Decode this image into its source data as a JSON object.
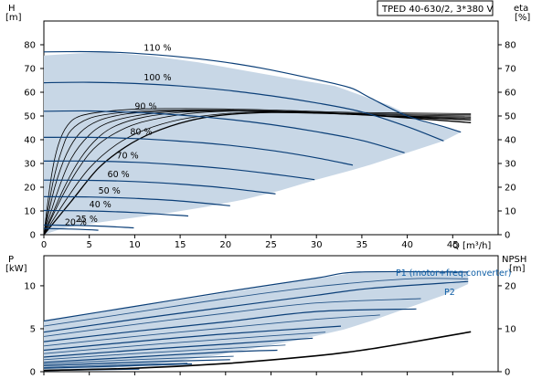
{
  "chart_data": [
    {
      "type": "line",
      "title": "TPED 40-630/2, 3*380 V",
      "xlabel": "Q [m³/h]",
      "ylabel": "H [m]",
      "ylabel_top": "H",
      "ylabel_unit": "[m]",
      "y2label_top": "eta",
      "y2label_unit": "[%]",
      "xlim": [
        0,
        50
      ],
      "ylim": [
        0,
        90
      ],
      "y2lim": [
        0,
        90
      ],
      "x_ticks": [
        0,
        5,
        10,
        15,
        20,
        25,
        30,
        35,
        40,
        45
      ],
      "x_tick_labels": [
        "0",
        "5",
        "10",
        "15",
        "20",
        "25",
        "30",
        "35",
        "40",
        "45"
      ],
      "y_ticks": [
        0,
        10,
        20,
        30,
        40,
        50,
        60,
        70,
        80
      ],
      "y_tick_labels": [
        "0",
        "10",
        "20",
        "30",
        "40",
        "50",
        "60",
        "70",
        "80"
      ],
      "y2_ticks": [
        0,
        10,
        20,
        30,
        40,
        50,
        60,
        70,
        80
      ],
      "y2_tick_labels": [
        "0",
        "10",
        "20",
        "30",
        "40",
        "50",
        "60",
        "70",
        "80"
      ],
      "grid": false,
      "colors": {
        "head_curve": "#0b3f78",
        "operating_area": "#c8d7e6",
        "eta_curve": "#000000"
      },
      "operating_area": {
        "x": [
          0,
          3.8,
          6.8,
          12,
          17,
          22,
          27,
          32,
          38,
          42,
          45.9,
          44,
          40,
          36,
          34,
          30,
          26,
          22,
          18,
          14,
          10,
          7,
          4,
          2,
          0
        ],
        "y": [
          75.5,
          76.4,
          76.8,
          75.2,
          72.6,
          69.2,
          65.8,
          62.7,
          54.5,
          47.2,
          43.2,
          39.5,
          34.5,
          29.5,
          27.3,
          23.2,
          18.6,
          14.8,
          11.8,
          9.3,
          7.2,
          5.7,
          4.0,
          2.6,
          0
        ]
      },
      "head_curves": [
        {
          "name": "110 %",
          "q": [
            0,
            4,
            8,
            12,
            16,
            20,
            24,
            28,
            32,
            34,
            36,
            40,
            44,
            45.9
          ],
          "h": [
            77,
            77.1,
            76.8,
            75.9,
            74.5,
            72.6,
            70.1,
            67.0,
            63.6,
            61.5,
            57.5,
            50.0,
            45.5,
            43.2
          ]
        },
        {
          "name": "100 %",
          "q": [
            0,
            5,
            10,
            15,
            20,
            25,
            30,
            35,
            40,
            44
          ],
          "h": [
            64,
            64.2,
            63.7,
            62.6,
            60.9,
            58.5,
            55.5,
            51.7,
            45.5,
            39.5
          ]
        },
        {
          "name": "90 %",
          "q": [
            0,
            5,
            10,
            15,
            20,
            25,
            30,
            35,
            39.7
          ],
          "h": [
            52,
            52.1,
            51.5,
            50.4,
            48.7,
            46.4,
            43.4,
            39.7,
            34.5
          ]
        },
        {
          "name": "80 %",
          "q": [
            0,
            5,
            10,
            15,
            20,
            25,
            30,
            34
          ],
          "h": [
            41,
            41.0,
            40.5,
            39.4,
            37.8,
            35.5,
            32.4,
            29.3
          ]
        },
        {
          "name": "70 %",
          "q": [
            0,
            5,
            10,
            15,
            20,
            25,
            29.8
          ],
          "h": [
            31,
            31.0,
            30.5,
            29.4,
            27.8,
            25.6,
            23.2
          ]
        },
        {
          "name": "60 %",
          "q": [
            0,
            5,
            10,
            15,
            20,
            25.5
          ],
          "h": [
            23,
            22.9,
            22.4,
            21.3,
            19.7,
            17.2
          ]
        },
        {
          "name": "50 %",
          "q": [
            0,
            5,
            10,
            15,
            20.5
          ],
          "h": [
            16,
            15.9,
            15.3,
            14.2,
            12.2
          ]
        },
        {
          "name": "40 %",
          "q": [
            0,
            5,
            10,
            15.9
          ],
          "h": [
            10.2,
            10.0,
            9.3,
            7.9
          ]
        },
        {
          "name": "25 %",
          "q": [
            0,
            5,
            9.9
          ],
          "h": [
            4.1,
            3.8,
            2.9
          ]
        },
        {
          "name": "20 %",
          "q": [
            0,
            3,
            6
          ],
          "h": [
            2.6,
            2.4,
            1.9
          ]
        }
      ],
      "eta_curves": [
        {
          "q": [
            0,
            3,
            6,
            9,
            12,
            16,
            20,
            25,
            30,
            35,
            40,
            47
          ],
          "eta": [
            0,
            14,
            28,
            37,
            43,
            48,
            50.5,
            51.5,
            51.2,
            50.5,
            49.2,
            47.2
          ]
        },
        {
          "q": [
            0,
            2.5,
            5,
            8,
            11,
            15,
            20,
            25,
            30,
            35,
            40,
            47
          ],
          "eta": [
            0,
            15,
            28,
            38,
            44,
            48.5,
            51,
            51.8,
            51.5,
            50.8,
            49.5,
            48.2
          ]
        },
        {
          "q": [
            0,
            2,
            4,
            6,
            9,
            12,
            16,
            20,
            26,
            32,
            38,
            47
          ],
          "eta": [
            0,
            16,
            29,
            38,
            45,
            48.5,
            51,
            52,
            52,
            51.2,
            50,
            48.5
          ]
        },
        {
          "q": [
            0,
            2,
            4,
            6,
            8,
            11,
            15,
            19,
            25,
            31,
            38,
            47
          ],
          "eta": [
            0,
            18,
            32,
            41,
            46,
            49.5,
            51.5,
            52.2,
            52,
            51.2,
            50,
            49
          ]
        },
        {
          "q": [
            0,
            1.5,
            3,
            5,
            7,
            10,
            14,
            18,
            24,
            30,
            37,
            47
          ],
          "eta": [
            0,
            18,
            32,
            42,
            47,
            50,
            51.8,
            52.2,
            52,
            51.3,
            50.2,
            49.5
          ]
        },
        {
          "q": [
            0,
            1.2,
            2.5,
            4,
            6,
            9,
            13,
            17,
            23,
            29,
            36,
            47
          ],
          "eta": [
            0,
            20,
            34,
            43,
            48,
            50.8,
            52,
            52.3,
            52.2,
            51.5,
            50.6,
            50
          ]
        },
        {
          "q": [
            0,
            1,
            2,
            3,
            5,
            8,
            12,
            16,
            22,
            28,
            35,
            47
          ],
          "eta": [
            0,
            22,
            36,
            44,
            49,
            51.2,
            52.3,
            52.5,
            52.4,
            51.8,
            51,
            50.5
          ]
        },
        {
          "q": [
            0,
            0.8,
            1.6,
            2.6,
            4,
            7,
            11,
            15,
            21,
            27,
            34,
            47
          ],
          "eta": [
            0,
            24,
            38,
            46,
            50,
            52,
            53,
            53.1,
            52.9,
            52.3,
            51.5,
            51
          ]
        }
      ]
    },
    {
      "type": "line",
      "xlabel": "",
      "ylabel": "P [kW]",
      "ylabel_top": "P",
      "ylabel_unit": "[kW]",
      "y2label_top": "NPSH",
      "y2label_unit": "[m]",
      "xlim": [
        0,
        50
      ],
      "ylim": [
        0,
        13.5
      ],
      "y2lim": [
        0,
        27
      ],
      "y_ticks": [
        0,
        5,
        10
      ],
      "y_tick_labels": [
        "0",
        "5",
        "10"
      ],
      "y2_ticks": [
        0,
        10,
        20
      ],
      "y2_tick_labels": [
        "0",
        "10",
        "20"
      ],
      "grid": false,
      "colors": {
        "power_curve": "#0b3f78",
        "power_area": "#c8d7e6",
        "npsh_curve": "#000000"
      },
      "power_area": {
        "x": [
          0,
          34.7,
          46.7,
          46.7,
          44,
          40,
          36,
          33,
          28,
          23,
          19,
          15,
          12,
          10,
          7,
          4,
          2,
          0
        ],
        "y": [
          5.9,
          11.6,
          11.6,
          10.2,
          8.9,
          7.4,
          5.9,
          4.9,
          3.7,
          2.7,
          1.9,
          1.3,
          0.9,
          0.65,
          0.4,
          0.2,
          0.1,
          0.05
        ]
      },
      "power_curves_p1": [
        {
          "name": "P1 (motor+freq.converter)",
          "q": [
            0,
            10,
            20,
            30,
            34.7,
            46.7
          ],
          "p": [
            5.9,
            7.6,
            9.3,
            10.9,
            11.6,
            11.6
          ]
        },
        {
          "q": [
            0,
            10,
            20,
            30,
            36,
            46.7
          ],
          "p": [
            4.6,
            6.1,
            7.5,
            8.9,
            9.7,
            10.5
          ]
        },
        {
          "q": [
            0,
            10,
            20,
            30,
            41
          ],
          "p": [
            3.5,
            4.7,
            5.8,
            7.0,
            7.3
          ]
        },
        {
          "q": [
            0,
            10,
            20,
            32.7
          ],
          "p": [
            2.5,
            3.5,
            4.4,
            5.3
          ]
        },
        {
          "q": [
            0,
            10,
            20,
            29.6
          ],
          "p": [
            1.7,
            2.5,
            3.2,
            3.9
          ]
        },
        {
          "q": [
            0,
            10,
            20,
            25.7
          ],
          "p": [
            1.1,
            1.7,
            2.3,
            2.5
          ]
        },
        {
          "q": [
            0,
            10,
            20.5
          ],
          "p": [
            0.7,
            1.1,
            1.4
          ]
        },
        {
          "q": [
            0,
            10,
            16.3
          ],
          "p": [
            0.4,
            0.7,
            0.9
          ]
        },
        {
          "q": [
            0,
            10.5
          ],
          "p": [
            0.15,
            0.3
          ]
        }
      ],
      "power_curves_p2": [
        {
          "name": "P2",
          "q": [
            0,
            10,
            20,
            30,
            40,
            46.7
          ],
          "p": [
            5.3,
            6.9,
            8.5,
            9.9,
            10.8,
            10.8
          ]
        },
        {
          "q": [
            0,
            10,
            20,
            30,
            41.5
          ],
          "p": [
            4.1,
            5.5,
            6.8,
            8.0,
            8.5
          ]
        },
        {
          "q": [
            0,
            10,
            20,
            30,
            37
          ],
          "p": [
            3.0,
            4.1,
            5.1,
            6.1,
            6.6
          ]
        },
        {
          "q": [
            0,
            10,
            20,
            31
          ],
          "p": [
            2.1,
            3.0,
            3.8,
            4.6
          ]
        },
        {
          "q": [
            0,
            10,
            20,
            26.6
          ],
          "p": [
            1.4,
            2.1,
            2.7,
            3.1
          ]
        },
        {
          "q": [
            0,
            10,
            20.9
          ],
          "p": [
            0.9,
            1.4,
            1.8
          ]
        },
        {
          "q": [
            0,
            10,
            15.8
          ],
          "p": [
            0.5,
            0.85,
            1.0
          ]
        }
      ],
      "npsh": {
        "q": [
          0,
          10,
          20,
          30,
          35,
          40,
          47
        ],
        "npsh": [
          0.3,
          0.8,
          1.9,
          3.7,
          5.0,
          6.7,
          9.3
        ]
      }
    }
  ],
  "legend": {
    "p1_label": "P1 (motor+freq.converter)",
    "p2_label": "P2"
  }
}
